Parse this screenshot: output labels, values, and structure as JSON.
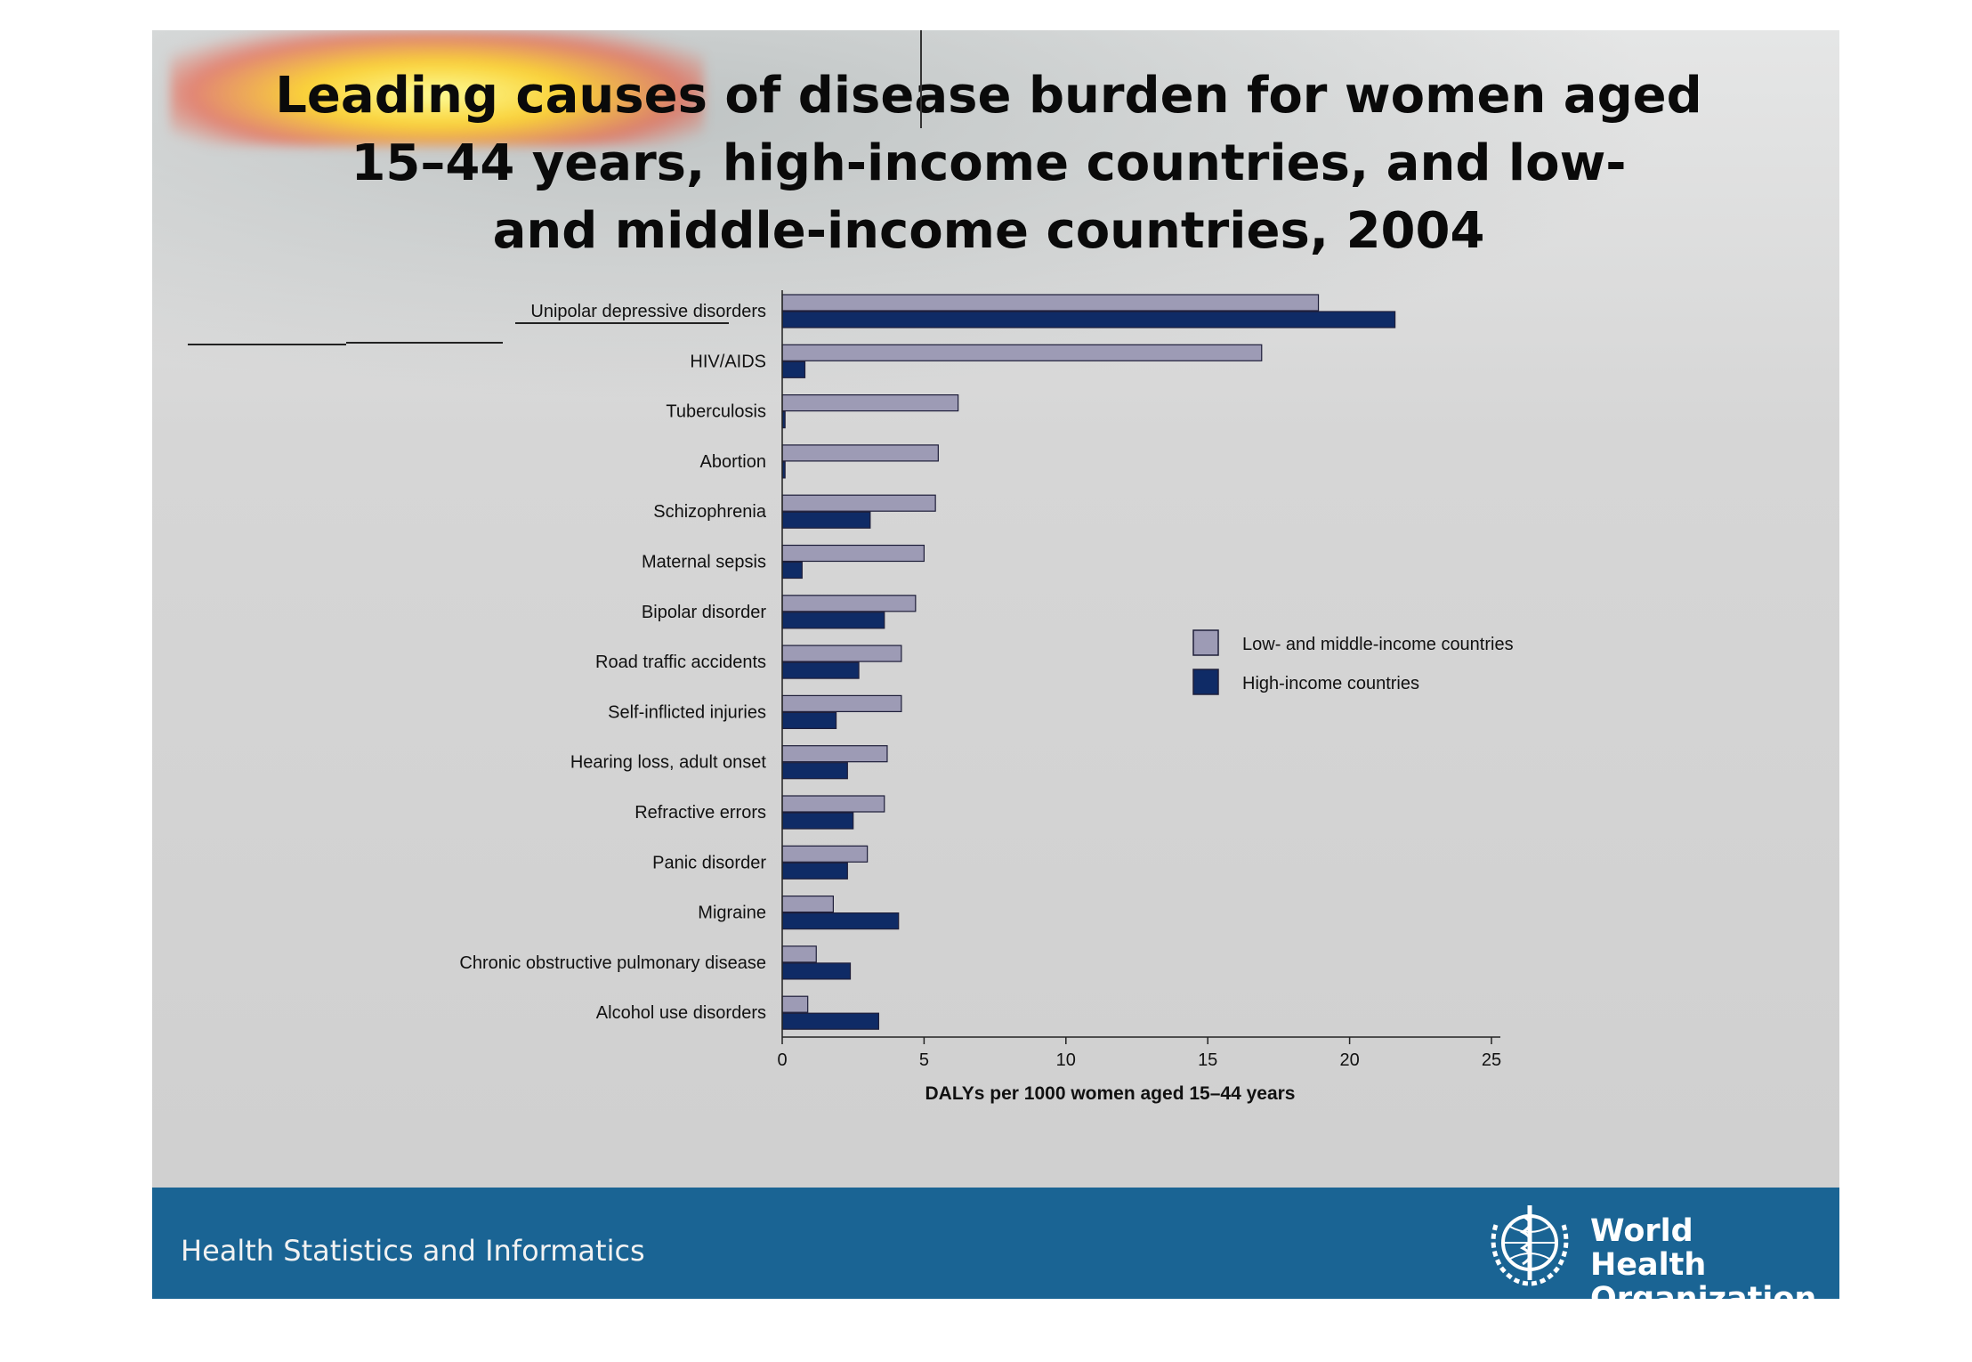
{
  "title": "Leading causes of disease burden for women aged\n15–44 years, high-income countries, and low-\nand middle-income countries, 2004",
  "footer": {
    "department": "Health Statistics and Informatics",
    "organization": "World Health\nOrganization"
  },
  "colors": {
    "low_middle": "#9d9bb5",
    "high": "#0f2b66",
    "footer_bg": "#1a6494"
  },
  "chart_data": {
    "type": "bar",
    "orientation": "horizontal",
    "categories": [
      "Unipolar depressive disorders",
      "HIV/AIDS",
      "Tuberculosis",
      "Abortion",
      "Schizophrenia",
      "Maternal sepsis",
      "Bipolar disorder",
      "Road traffic accidents",
      "Self-inflicted injuries",
      "Hearing loss, adult onset",
      "Refractive errors",
      "Panic disorder",
      "Migraine",
      "Chronic obstructive pulmonary disease",
      "Alcohol use disorders"
    ],
    "series": [
      {
        "name": "Low- and middle-income countries",
        "values": [
          18.9,
          16.9,
          6.2,
          5.5,
          5.4,
          5.0,
          4.7,
          4.2,
          4.2,
          3.7,
          3.6,
          3.0,
          1.8,
          1.2,
          0.9
        ]
      },
      {
        "name": "High-income countries",
        "values": [
          21.6,
          0.8,
          0.1,
          0.1,
          3.1,
          0.7,
          3.6,
          2.7,
          1.9,
          2.3,
          2.5,
          2.3,
          4.1,
          2.4,
          3.4
        ]
      }
    ],
    "xlabel": "DALYs per 1000 women aged 15–44 years",
    "ylabel": "",
    "xlim": [
      0,
      25
    ],
    "xticks": [
      0,
      5,
      10,
      15,
      20,
      25
    ],
    "legend_position": "right",
    "grid": false
  }
}
